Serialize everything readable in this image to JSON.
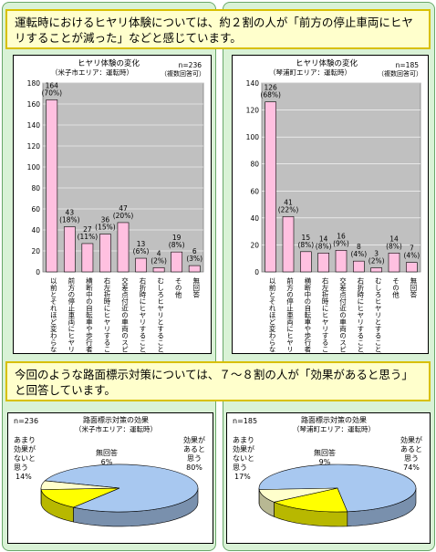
{
  "top_callout": {
    "text": "運転時におけるヒヤリ体験については、約２割の人が「前方の停止車両にヒヤリすることが減った」などと感じています。"
  },
  "mid_callout": {
    "text": "今回のような路面標示対策については、７～８割の人が「効果があると思う」と回答しています。"
  },
  "chart_data": [
    {
      "type": "bar",
      "title": "ヒヤリ体験の変化",
      "subtitle": "（米子市エリア：運転時）",
      "n_label": "n=236",
      "multi_label": "（複数回答可）",
      "ylim": [
        0,
        180
      ],
      "yticks": [
        0,
        20,
        40,
        60,
        80,
        100,
        120,
        140,
        160,
        180
      ],
      "categories": [
        "以前とそれほど変わらない",
        "前方の停止車両にヒヤリすることが減った",
        "横断中の自転車や歩行者にヒヤリすることが減った",
        "右左折時にヒヤリすることが減った",
        "交差点付近の車両のスピードにヒヤリすることが減った",
        "右折時にヒヤリすることが減った",
        "むしろヒヤリとすることが増えた",
        "その他",
        "無回答"
      ],
      "values": [
        164,
        43,
        27,
        36,
        47,
        13,
        4,
        19,
        6
      ],
      "data_labels": [
        [
          "164",
          "(70%)"
        ],
        [
          "43",
          "(18%)"
        ],
        [
          "27",
          "(11%)"
        ],
        [
          "36",
          "(15%)"
        ],
        [
          "47",
          "(20%)"
        ],
        [
          "13",
          "(6%)"
        ],
        [
          "4",
          "(2%)"
        ],
        [
          "19",
          "(8%)"
        ],
        [
          "6",
          "(3%)"
        ]
      ],
      "bar_color": "#ffc0e0"
    },
    {
      "type": "bar",
      "title": "ヒヤリ体験の変化",
      "subtitle": "（琴浦町エリア：運転時）",
      "n_label": "n=185",
      "multi_label": "（複数回答可）",
      "ylim": [
        0,
        140
      ],
      "yticks": [
        0,
        20,
        40,
        60,
        80,
        100,
        120,
        140
      ],
      "categories": [
        "以前とそれほど変わらない",
        "前方の停止車両にヒヤリすることが減った",
        "横断中の自転車や歩行者にヒヤリすることが減った",
        "右左折時にヒヤリすることが減った",
        "交差点付近の車両のスピードにヒヤリすることが減った",
        "右折時にヒヤリすることが減った",
        "むしろヒヤリとすることが増えた",
        "その他",
        "無回答"
      ],
      "values": [
        126,
        41,
        15,
        14,
        16,
        8,
        3,
        14,
        7
      ],
      "data_labels": [
        [
          "126",
          "(68%)"
        ],
        [
          "41",
          "(22%)"
        ],
        [
          "15",
          "(8%)"
        ],
        [
          "14",
          "(8%)"
        ],
        [
          "16",
          "(9%)"
        ],
        [
          "8",
          "(4%)"
        ],
        [
          "3",
          "(2%)"
        ],
        [
          "14",
          "(8%)"
        ],
        [
          "7",
          "(4%)"
        ]
      ],
      "bar_color": "#ffc0e0"
    },
    {
      "type": "pie",
      "title": "路面標示対策の効果",
      "subtitle": "（米子市エリア：運転時）",
      "n_label": "n=236",
      "slices": [
        {
          "label": "効果があると思う",
          "label_lines": [
            "効果が",
            "あると",
            "思う"
          ],
          "pct_label": "80%",
          "value": 80,
          "color": "#a8c8f0"
        },
        {
          "label": "あまり効果がないと思う",
          "label_lines": [
            "あまり",
            "効果が",
            "ないと",
            "思う"
          ],
          "pct_label": "14%",
          "value": 14,
          "color": "#ffff00"
        },
        {
          "label": "無回答",
          "label_lines": [
            "無回答"
          ],
          "pct_label": "6%",
          "value": 6,
          "color": "#ffffcc"
        }
      ]
    },
    {
      "type": "pie",
      "title": "路面標示対策の効果",
      "subtitle": "（琴浦町エリア：運転時）",
      "n_label": "n=185",
      "slices": [
        {
          "label": "効果があると思う",
          "label_lines": [
            "効果が",
            "あると",
            "思う"
          ],
          "pct_label": "74%",
          "value": 74,
          "color": "#a8c8f0"
        },
        {
          "label": "あまり効果がないと思う",
          "label_lines": [
            "あまり",
            "効果が",
            "ないと",
            "思う"
          ],
          "pct_label": "17%",
          "value": 17,
          "color": "#ffff00"
        },
        {
          "label": "無回答",
          "label_lines": [
            "無回答"
          ],
          "pct_label": "9%",
          "value": 9,
          "color": "#ffffcc"
        }
      ]
    }
  ]
}
